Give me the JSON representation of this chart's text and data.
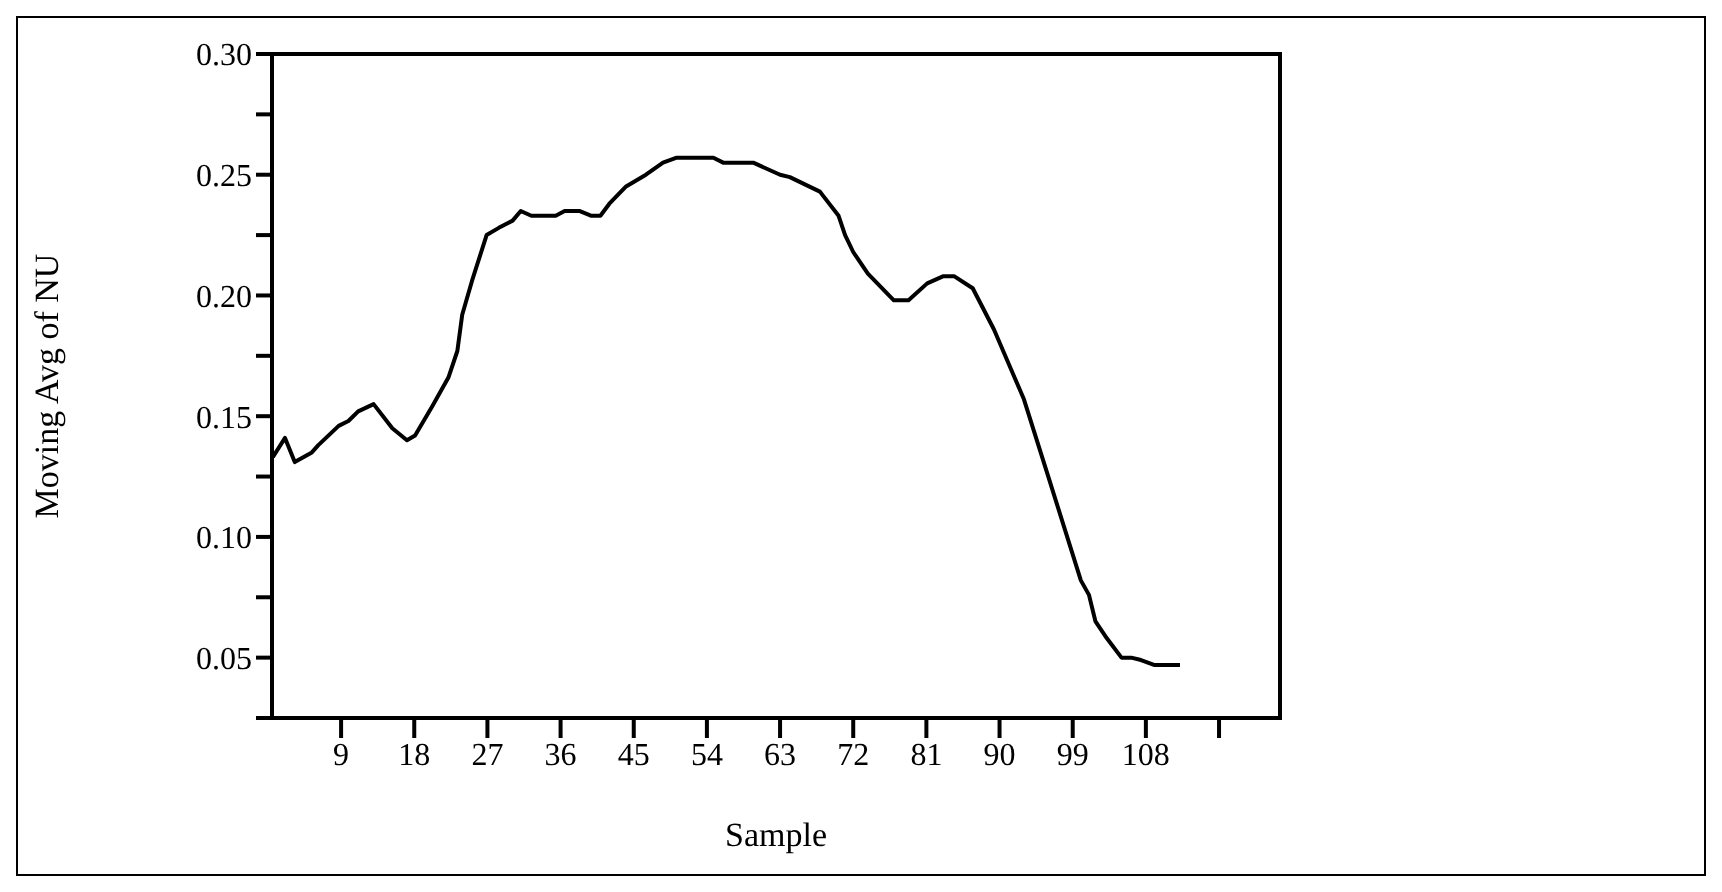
{
  "chart_data": {
    "type": "line",
    "xlabel": "Sample",
    "ylabel": "Moving Avg of NU",
    "xlim": [
      0.5,
      124.5
    ],
    "xticks": [
      9,
      18,
      27,
      36,
      45,
      54,
      63,
      72,
      81,
      90,
      99,
      108,
      {
        "value": 117,
        "label": null
      }
    ],
    "ylim": [
      0.025,
      0.3
    ],
    "yticks": [
      {
        "value": 0.025,
        "label": null
      },
      0.05,
      {
        "value": 0.075,
        "label": null
      },
      {
        "value": 0.1,
        "label": "0.10"
      },
      {
        "value": 0.125,
        "label": null
      },
      0.15,
      {
        "value": 0.175,
        "label": null
      },
      {
        "value": 0.2,
        "label": "0.20"
      },
      {
        "value": 0.225,
        "label": null
      },
      0.25,
      {
        "value": 0.275,
        "label": null
      },
      {
        "value": 0.3,
        "label": "0.30"
      }
    ],
    "marker": "none",
    "line_style": "solid",
    "series": [
      {
        "color": "#000000",
        "x": [
          0.6,
          2.1,
          3.3,
          5.4,
          6.2,
          8.7,
          9.9,
          11.1,
          13.0,
          15.3,
          17.1,
          18.1,
          20.2,
          22.2,
          23.3,
          23.9,
          25.1,
          26.9,
          28.4,
          30.1,
          31.1,
          32.4,
          35.4,
          36.5,
          38.3,
          39.8,
          40.9,
          42.0,
          44.0,
          46.5,
          48.6,
          50.2,
          54.8,
          56.0,
          59.7,
          63.0,
          64.2,
          67.9,
          70.2,
          71.0,
          72.0,
          73.8,
          77.0,
          78.8,
          81.1,
          83.1,
          84.4,
          86.7,
          89.3,
          93.0,
          95.9,
          100.0,
          101.0,
          101.8,
          103.2,
          105.0,
          106.2,
          107.4,
          109.0,
          112.2
        ],
        "values": [
          0.133,
          0.141,
          0.131,
          0.135,
          0.138,
          0.146,
          0.148,
          0.152,
          0.155,
          0.145,
          0.14,
          0.142,
          0.154,
          0.166,
          0.177,
          0.192,
          0.206,
          0.225,
          0.228,
          0.231,
          0.235,
          0.233,
          0.233,
          0.235,
          0.235,
          0.233,
          0.233,
          0.238,
          0.245,
          0.25,
          0.255,
          0.257,
          0.257,
          0.255,
          0.255,
          0.25,
          0.249,
          0.243,
          0.233,
          0.225,
          0.218,
          0.209,
          0.198,
          0.198,
          0.205,
          0.208,
          0.208,
          0.203,
          0.186,
          0.157,
          0.126,
          0.082,
          0.076,
          0.065,
          0.058,
          0.05,
          0.05,
          0.049,
          0.047,
          0.047
        ]
      }
    ]
  }
}
